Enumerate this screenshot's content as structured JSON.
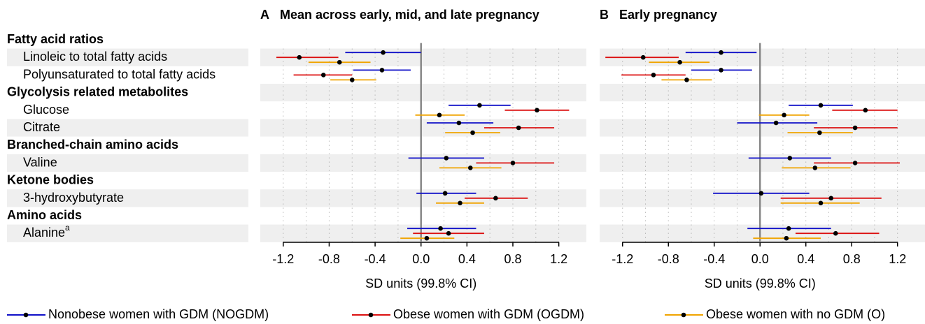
{
  "rows": [
    {
      "heading": "Fatty acid ratios",
      "items": [
        {
          "label": "Linoleic to total fatty acids"
        },
        {
          "label": "Polyunsaturated to total fatty acids"
        }
      ]
    },
    {
      "heading": "Glycolysis related metabolites",
      "items": [
        {
          "label": "Glucose"
        },
        {
          "label": "Citrate"
        }
      ]
    },
    {
      "heading": "Branched-chain amino acids",
      "items": [
        {
          "label": "Valine"
        }
      ]
    },
    {
      "heading": "Ketone bodies",
      "items": [
        {
          "label": "3-hydroxybutyrate"
        }
      ]
    },
    {
      "heading": "Amino acids",
      "items": [
        {
          "label": "Alanine",
          "note": "a"
        }
      ]
    }
  ],
  "legend": [
    {
      "name": "Nonobese women with GDM (NOGDM)",
      "color": "#1010c8"
    },
    {
      "name": "Obese women with GDM (OGDM)",
      "color": "#dc1010"
    },
    {
      "name": "Obese women with no GDM (O)",
      "color": "#f0a400"
    }
  ],
  "chart_data": [
    {
      "type": "forest",
      "panel": "A",
      "title": "Mean across early, mid, and late pregnancy",
      "xlabel": "SD units (99.8% CI)",
      "xlim": [
        -1.4,
        1.44
      ],
      "xticks": [
        -1.2,
        -0.8,
        -0.4,
        {
          "value": 0,
          "label": "0.0"
        },
        0.4,
        0.8,
        1.2
      ],
      "xminor": [
        -1,
        -0.6,
        -0.2,
        0.2,
        0.6,
        1
      ],
      "reference": 0,
      "series": [
        {
          "values": [
            -0.33,
            -0.34,
            0.51,
            0.33,
            0.22,
            0.21,
            0.17
          ],
          "ci_low": [
            -0.66,
            -0.59,
            0.24,
            0.05,
            -0.11,
            -0.04,
            -0.12
          ],
          "ci_high": [
            0.0,
            -0.09,
            0.78,
            0.63,
            0.55,
            0.48,
            0.48
          ]
        },
        {
          "values": [
            -1.06,
            -0.85,
            1.01,
            0.85,
            0.8,
            0.65,
            0.24
          ],
          "ci_low": [
            -1.26,
            -1.11,
            0.73,
            0.55,
            0.48,
            0.38,
            -0.07
          ],
          "ci_high": [
            -0.72,
            -0.6,
            1.29,
            1.16,
            1.16,
            0.93,
            0.55
          ]
        },
        {
          "values": [
            -0.71,
            -0.6,
            0.16,
            0.45,
            0.43,
            0.34,
            0.05
          ],
          "ci_low": [
            -0.98,
            -0.79,
            -0.05,
            0.21,
            0.16,
            0.13,
            -0.18
          ],
          "ci_high": [
            -0.44,
            -0.39,
            0.38,
            0.69,
            0.7,
            0.55,
            0.29
          ]
        }
      ]
    },
    {
      "type": "forest",
      "panel": "B",
      "title": "Early pregnancy",
      "xlabel": "SD units (99.8% CI)",
      "xlim": [
        -1.4,
        1.44
      ],
      "xticks": [
        -1.2,
        -0.8,
        -0.4,
        {
          "value": 0,
          "label": "0.0"
        },
        0.4,
        0.8,
        1.2
      ],
      "xminor": [
        -1,
        -0.6,
        -0.2,
        0.2,
        0.6,
        1
      ],
      "reference": 0,
      "series": [
        {
          "values": [
            -0.34,
            -0.34,
            0.53,
            0.14,
            0.26,
            0.01,
            0.25
          ],
          "ci_low": [
            -0.65,
            -0.6,
            0.25,
            -0.2,
            -0.1,
            -0.41,
            -0.11
          ],
          "ci_high": [
            -0.03,
            -0.07,
            0.81,
            0.5,
            0.62,
            0.43,
            0.62
          ]
        },
        {
          "values": [
            -1.02,
            -0.93,
            0.92,
            0.83,
            0.83,
            0.62,
            0.66
          ],
          "ci_low": [
            -1.35,
            -1.21,
            0.63,
            0.47,
            0.47,
            0.18,
            0.31
          ],
          "ci_high": [
            -0.71,
            -0.65,
            1.2,
            1.2,
            1.22,
            1.06,
            1.04
          ]
        },
        {
          "values": [
            -0.7,
            -0.64,
            0.21,
            0.52,
            0.48,
            0.53,
            0.23
          ],
          "ci_low": [
            -0.97,
            -0.86,
            -0.01,
            0.24,
            0.19,
            0.18,
            -0.06
          ],
          "ci_high": [
            -0.44,
            -0.42,
            0.43,
            0.81,
            0.79,
            0.87,
            0.53
          ]
        }
      ]
    }
  ]
}
